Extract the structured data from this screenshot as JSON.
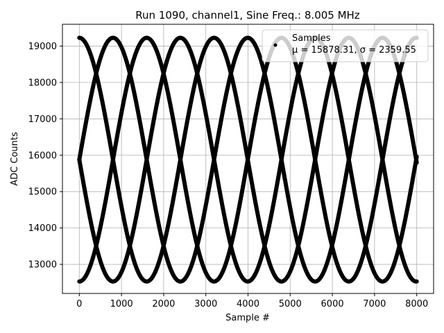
{
  "chart_data": {
    "type": "scatter",
    "title": "Run 1090, channel1, Sine Freq.: 8.005 MHz",
    "xlabel": "Sample #",
    "ylabel": "ADC Counts",
    "xlim": [
      -400,
      8400
    ],
    "ylim": [
      12200,
      19600
    ],
    "xticks": [
      0,
      1000,
      2000,
      3000,
      4000,
      5000,
      6000,
      7000,
      8000
    ],
    "yticks": [
      13000,
      14000,
      15000,
      16000,
      17000,
      18000,
      19000
    ],
    "grid": true,
    "legend_placement": "top-right",
    "marker_color": "#000000",
    "legend": {
      "series_name": "Samples",
      "stats_text": "μ = 15878.31, σ = 2359.55"
    },
    "sine_model": {
      "mean": 15878.31,
      "amplitude": 3350,
      "period_samples": 3195,
      "phases_deg": [
        -90,
        0,
        90,
        180
      ],
      "x_range": [
        0,
        8000
      ]
    }
  }
}
